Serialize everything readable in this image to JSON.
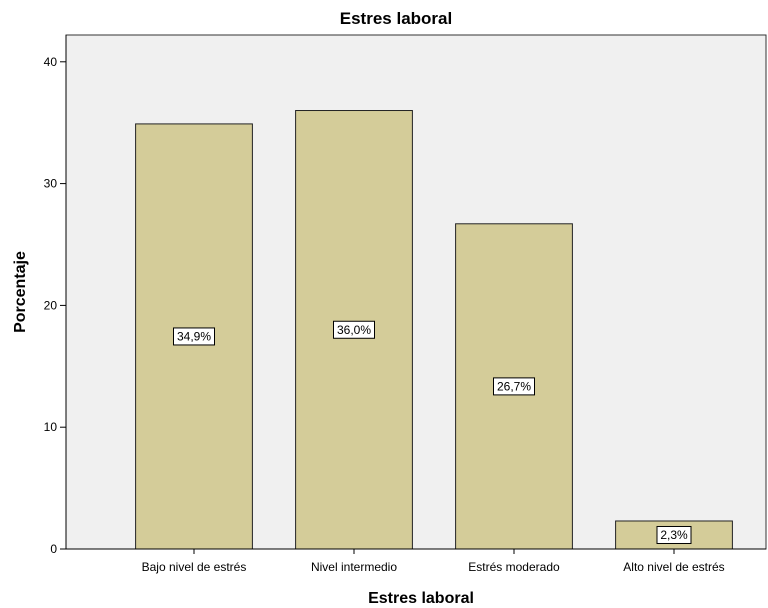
{
  "chart_data": {
    "type": "bar",
    "title": "Estres laboral",
    "xlabel": "Estres laboral",
    "ylabel": "Porcentaje",
    "categories": [
      "Bajo nivel de estrés",
      "Nivel intermedio",
      "Estrés moderado",
      "Alto nivel de estrés"
    ],
    "values": [
      34.9,
      36.0,
      26.7,
      2.3
    ],
    "data_labels": [
      "34,9%",
      "36,0%",
      "26,7%",
      "2,3%"
    ],
    "ylim": [
      0,
      42.2
    ],
    "yticks": [
      0,
      10,
      20,
      30,
      40
    ],
    "grid": false,
    "colors": {
      "bar_fill": "#d4cc99",
      "bar_stroke": "#222222",
      "plot_background": "#f0f0f0",
      "label_box": "#ffffff"
    }
  }
}
